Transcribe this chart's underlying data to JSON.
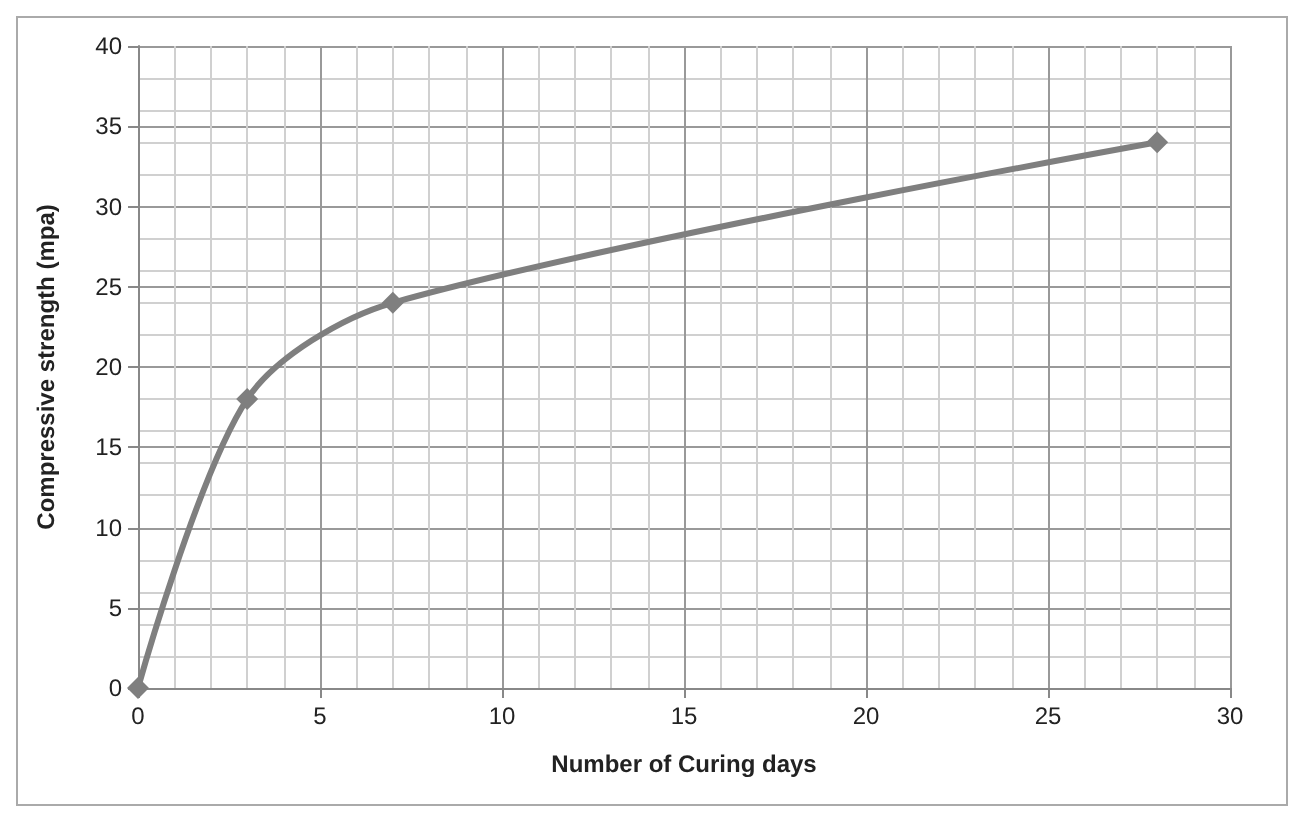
{
  "chart_data": {
    "type": "line",
    "xlabel": "Number of Curing days",
    "ylabel": "Compressive strength (mpa)",
    "x": [
      0,
      3,
      7,
      28
    ],
    "series": [
      {
        "color": "#7f7f7f",
        "values": [
          0,
          18,
          24,
          34
        ]
      }
    ],
    "xlim": [
      0,
      30
    ],
    "xticks": [
      0,
      5,
      10,
      15,
      20,
      25,
      30
    ],
    "ylim": [
      0,
      40
    ],
    "yticks": [
      0,
      5,
      10,
      15,
      20,
      25,
      30,
      35,
      40
    ],
    "grid": true,
    "marker": "diamond",
    "line_style": "solid"
  }
}
